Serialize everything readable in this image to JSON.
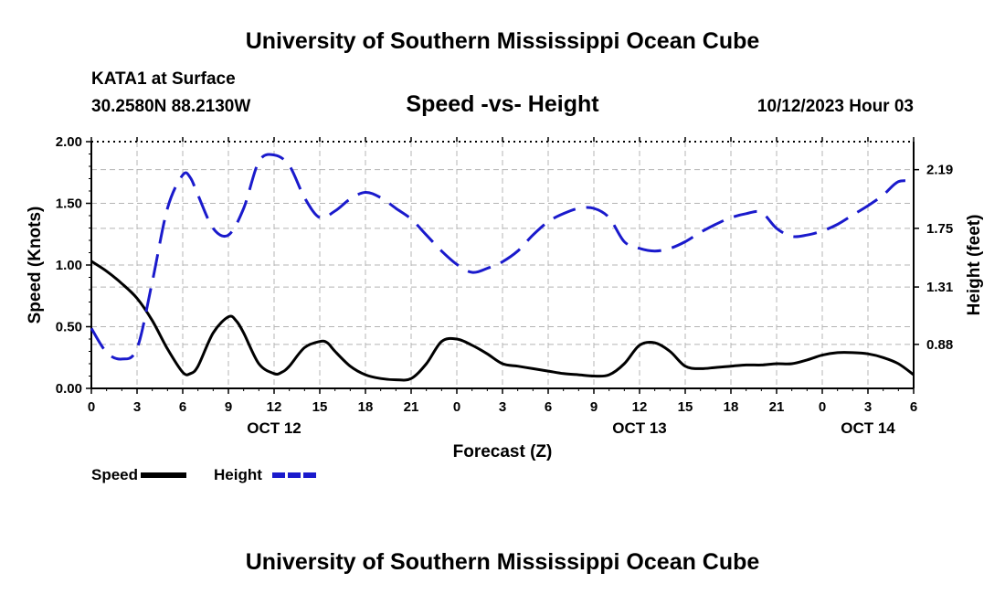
{
  "header": {
    "title": "University of Southern Mississippi Ocean Cube",
    "station": "KATA1 at Surface",
    "coords": "30.2580N  88.2130W",
    "subtitle": "Speed -vs- Height",
    "datetime": "10/12/2023 Hour 03"
  },
  "footer": {
    "title": "University of Southern Mississippi Ocean Cube"
  },
  "chart_data": {
    "type": "line",
    "title": "Speed -vs- Height",
    "xlabel": "Forecast (Z)",
    "ylabel": "Speed (Knots)",
    "y2label": "Height (feet)",
    "xlim": [
      0,
      54
    ],
    "ylim": [
      0,
      2
    ],
    "y2lim": [
      0.55,
      2.4
    ],
    "grid": true,
    "xticks": [
      0,
      3,
      6,
      9,
      12,
      15,
      18,
      21,
      24,
      27,
      30,
      33,
      36,
      39,
      42,
      45,
      48,
      51,
      54
    ],
    "xtick_labels": [
      "0",
      "3",
      "6",
      "9",
      "12",
      "15",
      "18",
      "21",
      "0",
      "3",
      "6",
      "9",
      "12",
      "15",
      "18",
      "21",
      "0",
      "3",
      "6"
    ],
    "date_labels": [
      {
        "hour": 12,
        "label": "OCT 12"
      },
      {
        "hour": 36,
        "label": "OCT 13"
      },
      {
        "hour": 51,
        "label": "OCT 14"
      }
    ],
    "yticks": [
      0,
      0.5,
      1,
      1.5,
      2
    ],
    "ytick_labels": [
      "0.00",
      "0.50",
      "1.00",
      "1.50",
      "2.00"
    ],
    "y2ticks": [
      0.88,
      1.31,
      1.75,
      2.19
    ],
    "y2tick_labels": [
      "0.88",
      "1.31",
      "1.75",
      "2.19"
    ],
    "legend": {
      "placement": "bottom-left"
    },
    "series": [
      {
        "name": "Speed",
        "axis": "left",
        "color": "#000000",
        "style": "solid",
        "x": [
          0,
          1,
          2,
          3,
          4,
          5,
          6,
          6.5,
          7,
          8,
          9,
          9.5,
          10,
          11,
          12,
          12.5,
          13,
          14,
          15,
          15.5,
          16,
          17,
          18,
          19,
          20,
          21,
          22,
          23,
          24,
          25,
          26,
          27,
          28,
          29,
          30,
          31,
          32,
          33,
          34,
          35,
          36,
          37,
          38,
          39,
          40,
          41,
          42,
          43,
          44,
          45,
          46,
          47,
          48,
          49,
          50,
          51,
          52,
          53,
          54
        ],
        "values": [
          1.03,
          0.95,
          0.85,
          0.73,
          0.55,
          0.32,
          0.13,
          0.12,
          0.18,
          0.45,
          0.58,
          0.55,
          0.45,
          0.2,
          0.12,
          0.13,
          0.18,
          0.33,
          0.38,
          0.37,
          0.3,
          0.18,
          0.11,
          0.08,
          0.07,
          0.08,
          0.2,
          0.38,
          0.4,
          0.35,
          0.28,
          0.2,
          0.18,
          0.16,
          0.14,
          0.12,
          0.11,
          0.1,
          0.11,
          0.2,
          0.35,
          0.37,
          0.3,
          0.18,
          0.16,
          0.17,
          0.18,
          0.19,
          0.19,
          0.2,
          0.2,
          0.23,
          0.27,
          0.29,
          0.29,
          0.28,
          0.25,
          0.2,
          0.11
        ]
      },
      {
        "name": "Height",
        "axis": "right",
        "color": "#1a1acc",
        "style": "dashed",
        "x": [
          0,
          1,
          2,
          3,
          4,
          5,
          6,
          6.5,
          7,
          8,
          9,
          10,
          11,
          12,
          13,
          14,
          15,
          16,
          17,
          18,
          19,
          20,
          21,
          22,
          23,
          24,
          25,
          26,
          27,
          28,
          29,
          30,
          31,
          32,
          33,
          34,
          35,
          36,
          37,
          38,
          39,
          40,
          41,
          42,
          43,
          44,
          45,
          46,
          47,
          48,
          49,
          50,
          51,
          52,
          53,
          54
        ],
        "values": [
          1.0,
          0.82,
          0.77,
          0.85,
          1.35,
          1.9,
          2.15,
          2.13,
          2.0,
          1.75,
          1.7,
          1.9,
          2.25,
          2.3,
          2.22,
          1.98,
          1.83,
          1.88,
          1.97,
          2.02,
          1.98,
          1.9,
          1.82,
          1.7,
          1.58,
          1.48,
          1.42,
          1.45,
          1.5,
          1.58,
          1.7,
          1.8,
          1.86,
          1.9,
          1.9,
          1.83,
          1.65,
          1.6,
          1.58,
          1.6,
          1.65,
          1.72,
          1.78,
          1.83,
          1.86,
          1.87,
          1.75,
          1.69,
          1.7,
          1.73,
          1.78,
          1.85,
          1.92,
          2.0,
          2.1,
          2.1
        ]
      }
    ]
  }
}
